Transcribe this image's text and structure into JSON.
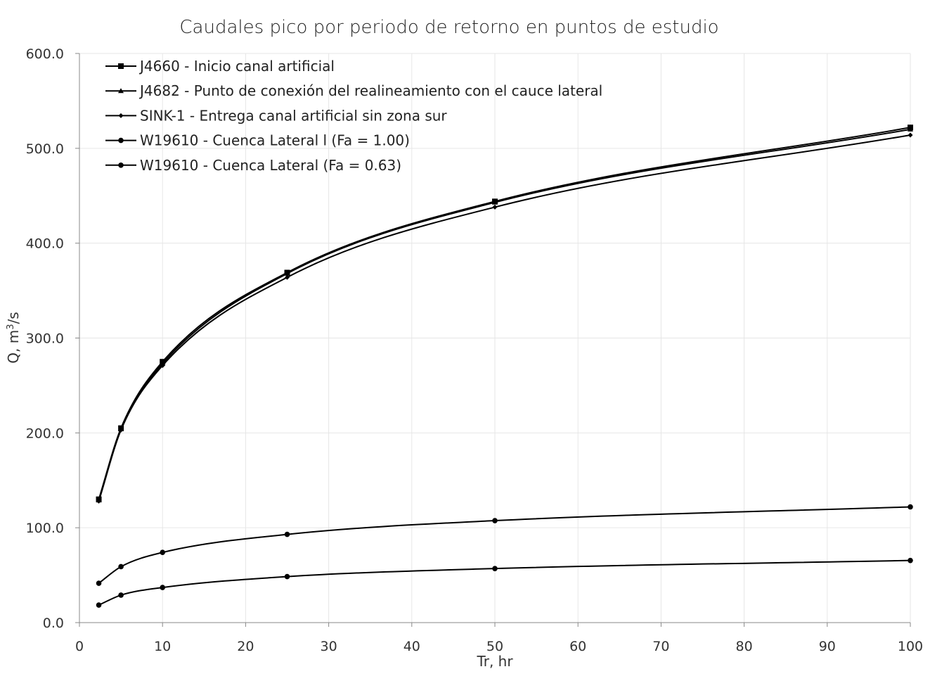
{
  "chart_data": {
    "type": "line",
    "title": "Caudales pico por periodo de retorno en puntos de estudio",
    "xlabel": "Tr, hr",
    "ylabel_main": "Q, m",
    "ylabel_sup": "3",
    "ylabel_tail": "/s",
    "xlim": [
      0,
      100
    ],
    "ylim": [
      0,
      600
    ],
    "xticks": [
      "0",
      "10",
      "20",
      "30",
      "40",
      "50",
      "60",
      "70",
      "80",
      "90",
      "100"
    ],
    "yticks": [
      "0.0",
      "100.0",
      "200.0",
      "300.0",
      "400.0",
      "500.0",
      "600.0"
    ],
    "grid": true,
    "smooth": true,
    "legend_position": "top-left",
    "x": [
      2.33,
      5,
      10,
      25,
      50,
      100
    ],
    "series": [
      {
        "name": "J4660 - Inicio canal artificial",
        "marker": "square",
        "values": [
          130,
          205,
          275,
          369,
          444,
          522
        ]
      },
      {
        "name": "J4682 - Punto de conexión del realineamiento con el cauce lateral",
        "marker": "triangle",
        "values": [
          129,
          204,
          273,
          368,
          443,
          520
        ]
      },
      {
        "name": "SINK-1 - Entrega canal artificial sin zona sur",
        "marker": "diamond",
        "values": [
          128,
          203,
          271,
          364,
          438,
          514
        ]
      },
      {
        "name": "W19610 - Cuenca Lateral l (Fa = 1.00)",
        "marker": "circle",
        "values": [
          41.5,
          59,
          74,
          93,
          107.5,
          122
        ]
      },
      {
        "name": "W19610 - Cuenca Lateral (Fa = 0.63)",
        "marker": "circle",
        "values": [
          18.5,
          29,
          37,
          48.5,
          57,
          65.5
        ]
      }
    ]
  }
}
